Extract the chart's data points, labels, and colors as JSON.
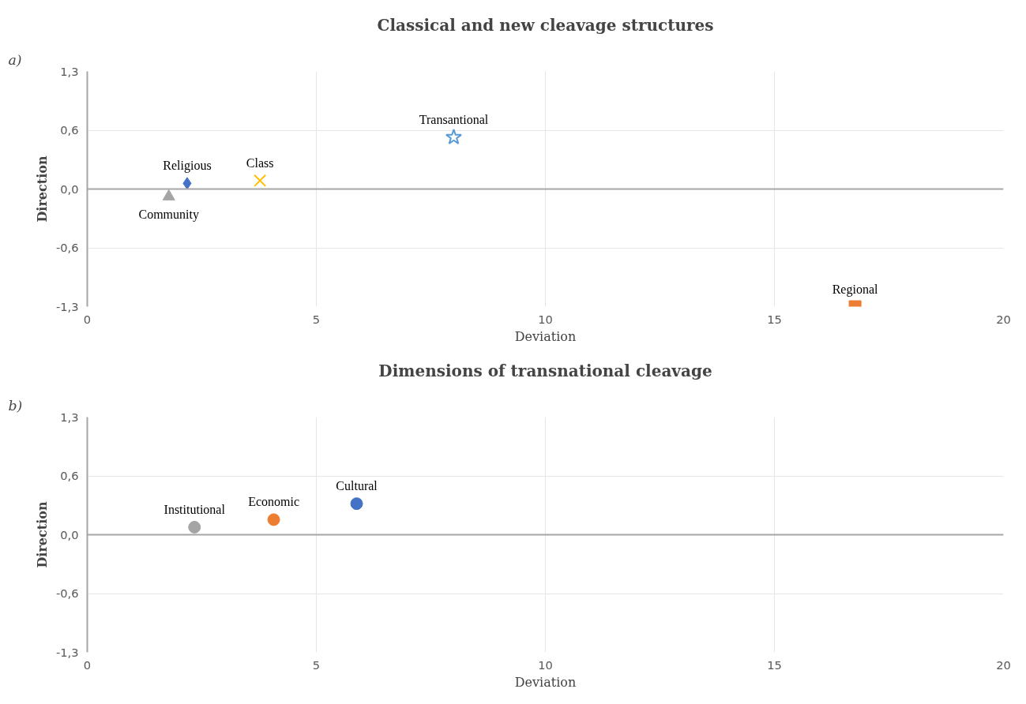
{
  "chart_data": [
    {
      "type": "scatter",
      "title": "Classical and new cleavage structures",
      "xlabel": "Deviation",
      "ylabel": "Direction",
      "annotations": [
        "a)"
      ],
      "xlim": [
        0,
        20
      ],
      "xticks": [
        0,
        5,
        10,
        15,
        20
      ],
      "ylim": [
        -1.25,
        1.25
      ],
      "yticks": [
        {
          "value": -1.25,
          "label": "-1,3"
        },
        {
          "value": -0.625,
          "label": "-0,6"
        },
        {
          "value": 0,
          "label": "0,0"
        },
        {
          "value": 0.625,
          "label": "0,6"
        },
        {
          "value": 1.25,
          "label": "1,3"
        }
      ],
      "grid": true,
      "series": [
        {
          "name": "Religious",
          "color": "#4472c4",
          "marker": "diamond",
          "x": [
            2.18
          ],
          "values": [
            0.06
          ]
        },
        {
          "name": "Regional",
          "color": "#ed7d31",
          "marker": "square",
          "x": [
            16.76
          ],
          "values": [
            -1.25
          ]
        },
        {
          "name": "Community",
          "color": "#a5a5a5",
          "marker": "triangle",
          "x": [
            1.78
          ],
          "values": [
            -0.08
          ]
        },
        {
          "name": "Class",
          "color": "#ffc000",
          "marker": "cross",
          "x": [
            3.77
          ],
          "values": [
            0.09
          ]
        },
        {
          "name": "Transantional",
          "color": "#5b9bd5",
          "marker": "star",
          "x": [
            8.0
          ],
          "values": [
            0.55
          ]
        }
      ]
    },
    {
      "type": "scatter",
      "title": "Dimensions of transnational cleavage",
      "xlabel": "Deviation",
      "ylabel": "Direction",
      "annotations": [
        "b)"
      ],
      "xlim": [
        0,
        20
      ],
      "xticks": [
        0,
        5,
        10,
        15,
        20
      ],
      "ylim": [
        -1.25,
        1.25
      ],
      "yticks": [
        {
          "value": -1.25,
          "label": "-1,3"
        },
        {
          "value": -0.625,
          "label": "-0,6"
        },
        {
          "value": 0,
          "label": "0,0"
        },
        {
          "value": 0.625,
          "label": "0,6"
        },
        {
          "value": 1.25,
          "label": "1,3"
        }
      ],
      "grid": true,
      "series": [
        {
          "name": "Cultural",
          "color": "#4472c4",
          "marker": "circle",
          "x": [
            5.88
          ],
          "values": [
            0.33
          ]
        },
        {
          "name": "Economic",
          "color": "#ed7d31",
          "marker": "circle",
          "x": [
            4.07
          ],
          "values": [
            0.16
          ]
        },
        {
          "name": "Institutional",
          "color": "#a5a5a5",
          "marker": "circle",
          "x": [
            2.34
          ],
          "values": [
            0.08
          ]
        }
      ]
    }
  ]
}
